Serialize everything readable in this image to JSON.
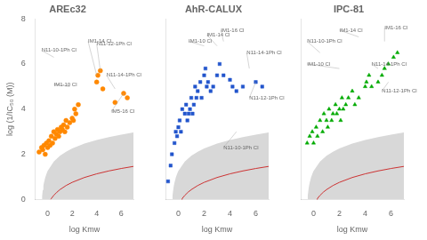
{
  "chart_data": [
    {
      "type": "scatter",
      "title": "AREc32",
      "xlabel": "log Kmw",
      "ylabel": "log (1/IC₅₀ (M))",
      "xlim": [
        -1,
        7
      ],
      "ylim": [
        0,
        8
      ],
      "xticks": [
        0,
        2,
        4,
        6
      ],
      "yticks": [
        0,
        2,
        4,
        6,
        8
      ],
      "grid": false,
      "series": [
        {
          "type": "area",
          "color": "#d8d8d8",
          "x": [
            -0.471,
            -0.46,
            -0.45,
            -0.4,
            -0.35,
            -0.3,
            -0.2,
            -0.1,
            0,
            0.5,
            1,
            1.5,
            2,
            3,
            4,
            5,
            6,
            7
          ],
          "lower": [
            0,
            0,
            0,
            0,
            0,
            0,
            0,
            0,
            0,
            0,
            0,
            0,
            0,
            0,
            0,
            0,
            0,
            0
          ],
          "upper": [
            0,
            0.085,
            0.153,
            0.417,
            0.604,
            0.749,
            0.968,
            1.131,
            1.261,
            1.682,
            1.935,
            2.117,
            2.258,
            2.474,
            2.635,
            2.764,
            2.872,
            2.964
          ]
        },
        {
          "type": "line",
          "color": "#cc3333",
          "x": [
            0.244,
            0.3,
            0.5,
            0.75,
            1,
            1.5,
            2,
            3,
            4,
            5,
            6,
            7
          ],
          "values": [
            0,
            0.044,
            0.182,
            0.321,
            0.435,
            0.617,
            0.758,
            0.974,
            1.135,
            1.264,
            1.372,
            1.464
          ]
        },
        {
          "type": "scatter",
          "color": "#FF8800",
          "marker": "circle",
          "x": [
            -0.7,
            -0.5,
            -0.4,
            -0.3,
            -0.2,
            -0.1,
            0.0,
            0.1,
            0.2,
            0.3,
            0.4,
            0.5,
            0.6,
            0.7,
            0.8,
            0.9,
            1.0,
            1.1,
            1.2,
            1.3,
            1.4,
            1.5,
            1.6,
            1.8,
            2.0,
            2.1,
            2.2,
            2.3,
            2.5,
            4.0,
            4.1,
            4.3,
            4.5,
            5.5,
            6.2,
            6.5
          ],
          "values": [
            2.1,
            2.3,
            2.2,
            2.4,
            2.0,
            2.5,
            2.3,
            2.6,
            2.4,
            2.8,
            2.5,
            3.0,
            2.7,
            2.9,
            3.1,
            2.8,
            3.0,
            3.2,
            3.1,
            3.3,
            3.0,
            3.5,
            3.2,
            3.4,
            3.6,
            3.5,
            4.0,
            3.8,
            4.2,
            5.2,
            5.5,
            5.7,
            4.9,
            4.3,
            4.7,
            4.5
          ]
        }
      ],
      "annotations": [
        {
          "text": "N11-10-1Ph Cl",
          "xy": [
            0.5,
            6.3
          ],
          "xytext": [
            -0.5,
            6.6
          ],
          "color": "#666666"
        },
        {
          "text": "IM1-10 Cl",
          "xy": [
            1.8,
            5.0
          ],
          "xytext": [
            0.5,
            5.1
          ],
          "color": "#666666"
        },
        {
          "text": "IM1-14 Cl",
          "xy": [
            4.0,
            5.5
          ],
          "xytext": [
            3.3,
            7.0
          ],
          "color": "#666666"
        },
        {
          "text": "N11-12-1Ph Cl",
          "xy": [
            4.3,
            5.7
          ],
          "xytext": [
            4.0,
            6.9
          ],
          "color": "#666666"
        },
        {
          "text": "N11-14-1Ph Cl",
          "xy": [
            5.5,
            4.9
          ],
          "xytext": [
            4.8,
            5.5
          ],
          "color": "#666666"
        },
        {
          "text": "IM5-16 Cl",
          "xy": [
            6.2,
            4.7
          ],
          "xytext": [
            5.2,
            3.9
          ],
          "color": "#666666"
        }
      ]
    },
    {
      "type": "scatter",
      "title": "AhR-CALUX",
      "xlabel": "log Kmw",
      "xlim": [
        -1,
        7
      ],
      "ylim": [
        0,
        8
      ],
      "xticks": [
        0,
        2,
        4,
        6
      ],
      "yticks": [
        0,
        2,
        4,
        6,
        8
      ],
      "grid": false,
      "tick_labels": "x",
      "series": [
        {
          "type": "area",
          "color": "#d8d8d8",
          "x": [
            -0.471,
            -0.46,
            -0.45,
            -0.4,
            -0.35,
            -0.3,
            -0.2,
            -0.1,
            0,
            0.5,
            1,
            1.5,
            2,
            3,
            4,
            5,
            6,
            7
          ],
          "lower": [
            0,
            0,
            0,
            0,
            0,
            0,
            0,
            0,
            0,
            0,
            0,
            0,
            0,
            0,
            0,
            0,
            0,
            0
          ],
          "upper": [
            0,
            0.085,
            0.153,
            0.417,
            0.604,
            0.749,
            0.968,
            1.131,
            1.261,
            1.682,
            1.935,
            2.117,
            2.258,
            2.474,
            2.635,
            2.764,
            2.872,
            2.964
          ]
        },
        {
          "type": "line",
          "color": "#cc3333",
          "x": [
            0.244,
            0.3,
            0.5,
            0.75,
            1,
            1.5,
            2,
            3,
            4,
            5,
            6,
            7
          ],
          "values": [
            0,
            0.044,
            0.182,
            0.321,
            0.435,
            0.617,
            0.758,
            0.974,
            1.135,
            1.264,
            1.372,
            1.464
          ]
        },
        {
          "type": "scatter",
          "color": "#2255CC",
          "marker": "square",
          "x": [
            -0.8,
            -0.6,
            -0.5,
            -0.3,
            -0.2,
            -0.1,
            0.0,
            0.1,
            0.2,
            0.3,
            0.5,
            0.6,
            0.7,
            0.8,
            0.9,
            1.0,
            1.1,
            1.2,
            1.3,
            1.4,
            1.5,
            1.7,
            1.8,
            2.0,
            2.1,
            2.2,
            2.3,
            2.5,
            2.7,
            3.0,
            3.2,
            3.5,
            4.0,
            4.2,
            4.5,
            5.0,
            6.0,
            6.5
          ],
          "values": [
            0.8,
            1.5,
            2.0,
            2.5,
            3.0,
            2.8,
            3.2,
            3.5,
            3.0,
            4.0,
            3.8,
            4.2,
            3.5,
            3.8,
            4.0,
            4.5,
            3.8,
            4.2,
            5.0,
            4.5,
            4.8,
            5.2,
            4.5,
            5.5,
            5.8,
            5.0,
            5.2,
            4.8,
            5.0,
            5.5,
            6.0,
            5.5,
            5.3,
            5.0,
            4.8,
            5.0,
            5.2,
            5.0
          ]
        }
      ],
      "annotations": [
        {
          "text": "IM1-10 Cl",
          "xy": [
            2.0,
            6.8
          ],
          "xytext": [
            0.8,
            7.0
          ],
          "color": "#666666"
        },
        {
          "text": "IM1-14 Cl",
          "xy": [
            3.0,
            6.8
          ],
          "xytext": [
            2.2,
            7.3
          ],
          "color": "#666666"
        },
        {
          "text": "IM1-16 Cl",
          "xy": [
            3.5,
            7.0
          ],
          "xytext": [
            3.3,
            7.5
          ],
          "color": "#666666"
        },
        {
          "text": "N11-14-1Ph Cl",
          "xy": [
            5.5,
            5.8
          ],
          "xytext": [
            5.3,
            6.5
          ],
          "color": "#666666"
        },
        {
          "text": "N11-12-1Ph Cl",
          "xy": [
            6.0,
            5.2
          ],
          "xytext": [
            5.5,
            4.5
          ],
          "color": "#666666"
        },
        {
          "text": "N11-10-1Ph Cl",
          "xy": [
            4.5,
            3.0
          ],
          "xytext": [
            3.5,
            2.3
          ],
          "color": "#666666"
        }
      ]
    },
    {
      "type": "scatter",
      "title": "IPC-81",
      "xlabel": "log Kmw",
      "xlim": [
        -1,
        7
      ],
      "ylim": [
        0,
        8
      ],
      "xticks": [
        0,
        2,
        4,
        6
      ],
      "yticks": [
        0,
        2,
        4,
        6,
        8
      ],
      "grid": false,
      "tick_labels": "x",
      "series": [
        {
          "type": "area",
          "color": "#d8d8d8",
          "x": [
            -0.471,
            -0.46,
            -0.45,
            -0.4,
            -0.35,
            -0.3,
            -0.2,
            -0.1,
            0,
            0.5,
            1,
            1.5,
            2,
            3,
            4,
            5,
            6,
            7
          ],
          "lower": [
            0,
            0,
            0,
            0,
            0,
            0,
            0,
            0,
            0,
            0,
            0,
            0,
            0,
            0,
            0,
            0,
            0,
            0
          ],
          "upper": [
            0,
            0.085,
            0.153,
            0.417,
            0.604,
            0.749,
            0.968,
            1.131,
            1.261,
            1.682,
            1.935,
            2.117,
            2.258,
            2.474,
            2.635,
            2.764,
            2.872,
            2.964
          ]
        },
        {
          "type": "line",
          "color": "#cc3333",
          "x": [
            0.244,
            0.3,
            0.5,
            0.75,
            1,
            1.5,
            2,
            3,
            4,
            5,
            6,
            7
          ],
          "values": [
            0,
            0.044,
            0.182,
            0.321,
            0.435,
            0.617,
            0.758,
            0.974,
            1.135,
            1.264,
            1.372,
            1.464
          ]
        },
        {
          "type": "scatter",
          "color": "#00AA00",
          "marker": "triangle",
          "x": [
            -0.5,
            -0.3,
            -0.1,
            0.0,
            0.2,
            0.3,
            0.5,
            0.7,
            0.8,
            1.0,
            1.1,
            1.2,
            1.4,
            1.5,
            1.7,
            1.8,
            2.0,
            2.1,
            2.2,
            2.3,
            2.5,
            2.7,
            3.0,
            3.2,
            3.5,
            4.0,
            4.1,
            4.3,
            4.5,
            5.0,
            5.3,
            5.5,
            5.8,
            6.2,
            6.5
          ],
          "values": [
            2.5,
            2.8,
            3.0,
            2.5,
            3.2,
            2.8,
            3.5,
            3.0,
            3.8,
            3.5,
            3.2,
            4.0,
            3.5,
            3.8,
            4.2,
            3.8,
            4.0,
            3.5,
            4.5,
            4.0,
            4.2,
            4.5,
            4.8,
            4.2,
            4.5,
            5.0,
            5.2,
            5.5,
            5.0,
            5.2,
            5.5,
            5.8,
            6.0,
            6.3,
            6.5
          ]
        }
      ],
      "annotations": [
        {
          "text": "IM1-14 Cl",
          "xy": [
            3.5,
            7.2
          ],
          "xytext": [
            2.0,
            7.5
          ],
          "color": "#666666"
        },
        {
          "text": "IM1-16 Cl",
          "xy": [
            5.5,
            7.0
          ],
          "xytext": [
            5.5,
            7.6
          ],
          "color": "#666666"
        },
        {
          "text": "N11-10-1Ph Cl",
          "xy": [
            0.5,
            6.5
          ],
          "xytext": [
            -0.5,
            7.0
          ],
          "color": "#666666"
        },
        {
          "text": "IM1-10 Cl",
          "xy": [
            2.0,
            5.8
          ],
          "xytext": [
            -0.5,
            6.0
          ],
          "color": "#666666"
        },
        {
          "text": "N11-14-1Ph Cl",
          "xy": [
            5.0,
            5.8
          ],
          "xytext": [
            4.5,
            6.0
          ],
          "color": "#666666"
        },
        {
          "text": "N11-12-1Ph Cl",
          "xy": [
            5.8,
            5.2
          ],
          "xytext": [
            5.3,
            4.8
          ],
          "color": "#666666"
        }
      ]
    }
  ]
}
